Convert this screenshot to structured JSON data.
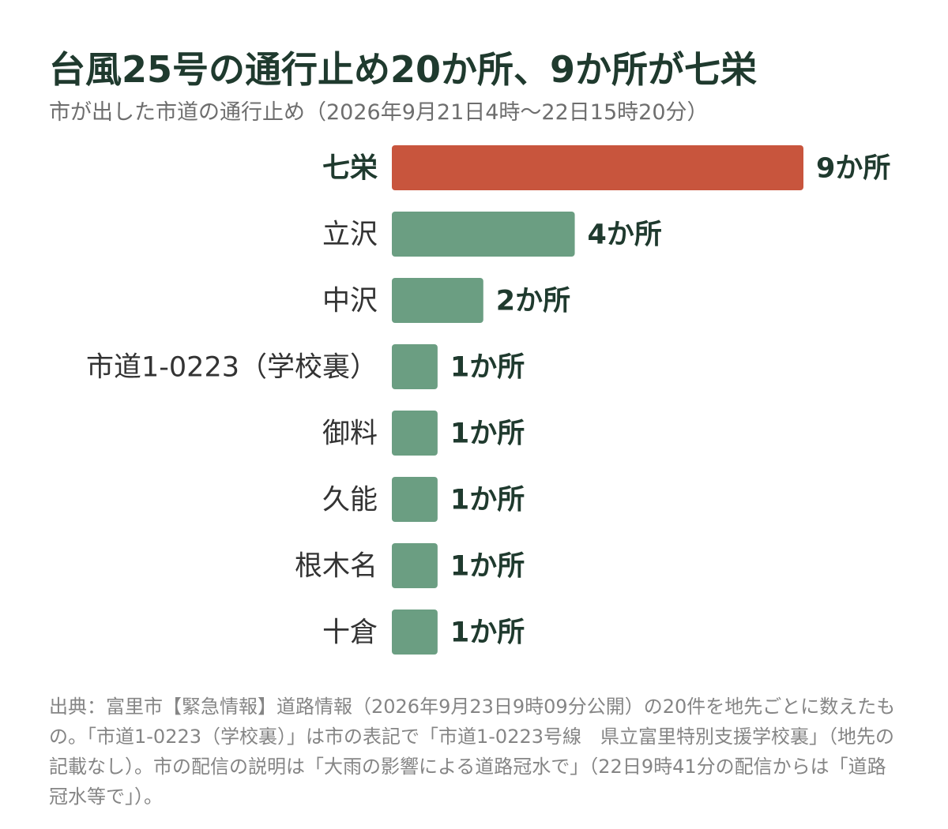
{
  "header": {
    "title": "台風25号の通行止め20か所、9か所が七栄",
    "subtitle": "市が出した市道の通行止め（2026年9月21日4時〜22日15時20分）"
  },
  "chart_data": {
    "type": "bar",
    "orientation": "horizontal",
    "categories": [
      "七栄",
      "立沢",
      "中沢",
      "市道1-0223（学校裏）",
      "御料",
      "久能",
      "根木名",
      "十倉"
    ],
    "values": [
      9,
      4,
      2,
      1,
      1,
      1,
      1,
      1
    ],
    "value_labels": [
      "9か所",
      "4か所",
      "2か所",
      "1か所",
      "1か所",
      "1か所",
      "1か所",
      "1か所"
    ],
    "highlight_index": 0,
    "colors": {
      "highlight": "#c8553d",
      "default": "#6b9e82",
      "text": "#1f3a2e"
    },
    "xlim": [
      0,
      9
    ],
    "grid": false,
    "legend": "none"
  },
  "footer": {
    "note": "出典：富里市【緊急情報】道路情報（2026年9月23日9時09分公開）の20件を地先ごとに数えたもの。「市道1-0223（学校裏）」は市の表記で「市道1-0223号線　県立富里特別支援学校裏」（地先の記載なし）。市の配信の説明は「大雨の影響による道路冠水で」（22日9時41分の配信からは「道路冠水等で」）。"
  }
}
